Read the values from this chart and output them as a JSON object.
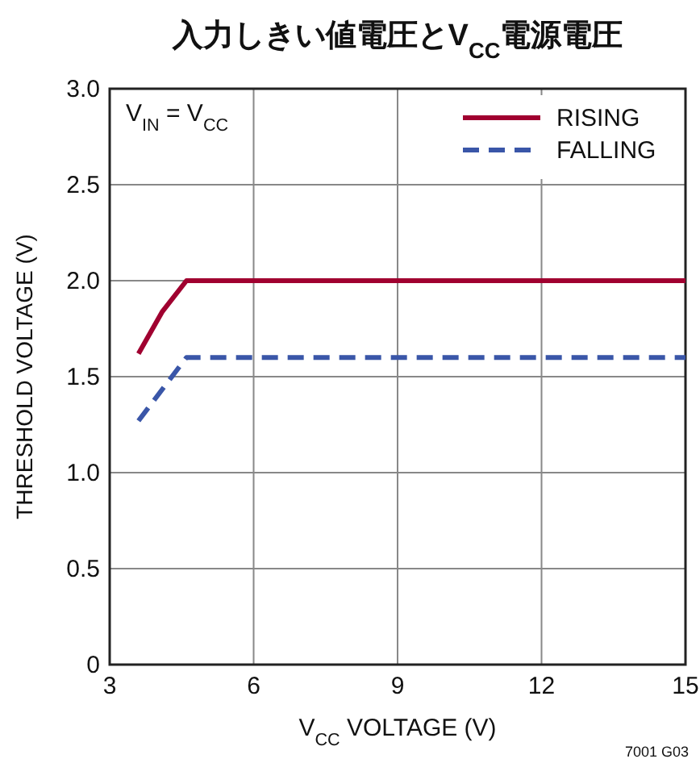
{
  "chart_data": {
    "type": "line",
    "title": "入力しきい値電圧とV$_{CC}$電源電圧",
    "xlabel": "V$_{CC}$ VOLTAGE (V)",
    "ylabel": "THRESHOLD VOLTAGE (V)",
    "xlim": [
      3,
      15
    ],
    "xticks": [
      3,
      6,
      9,
      12,
      15
    ],
    "ylim": [
      0,
      3
    ],
    "yticks": [
      0,
      0.5,
      {
        "value": 1,
        "label": "1.0"
      },
      1.5,
      {
        "value": 2,
        "label": "2.0"
      },
      2.5,
      {
        "value": 3,
        "label": "3.0"
      }
    ],
    "grid": true,
    "legend": "top right",
    "series": [
      {
        "name": "RISING",
        "color": "#a00030",
        "line_style": "solid",
        "x": [
          3.6,
          4.1,
          4.6,
          15
        ],
        "values": [
          1.62,
          1.84,
          2.0,
          2.0
        ]
      },
      {
        "name": "FALLING",
        "color": "#3a56a8",
        "line_style": "dashed",
        "x": [
          3.6,
          4.6,
          15
        ],
        "values": [
          1.27,
          1.6,
          1.6
        ]
      }
    ],
    "annotations": [
      "V$_{IN}$ = V$_{CC}$",
      "7001 G03"
    ]
  }
}
